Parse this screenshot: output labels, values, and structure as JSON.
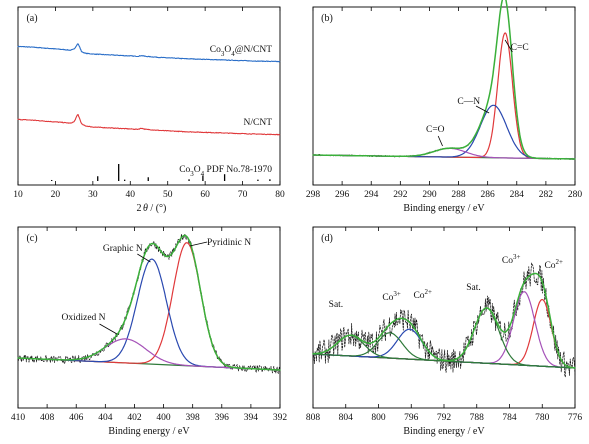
{
  "chart_data": [
    {
      "panel": "(a)",
      "type": "line",
      "xlabel": "2θ / (°)",
      "xlim": [
        10,
        80
      ],
      "xticks": [
        10,
        20,
        30,
        40,
        50,
        60,
        70,
        80
      ],
      "ylabel": "",
      "series": [
        {
          "name": "Co3O4@N/CNT",
          "color": "#2a6ec8",
          "x": [
            10,
            14,
            18,
            22,
            24,
            25,
            25.6,
            26,
            26.4,
            27,
            28,
            30,
            34,
            38,
            42,
            43,
            44,
            48,
            54,
            60,
            66,
            72,
            80
          ],
          "y": [
            62,
            60,
            57,
            54,
            52,
            55,
            64,
            70,
            62,
            48,
            44,
            42,
            40,
            38,
            36,
            38,
            36,
            33,
            30,
            28,
            26,
            24,
            22
          ]
        },
        {
          "name": "N/CNT",
          "color": "#e0393b",
          "x": [
            10,
            14,
            18,
            22,
            24,
            25,
            25.6,
            26,
            26.4,
            27,
            28,
            30,
            34,
            38,
            42,
            43,
            44,
            48,
            54,
            60,
            66,
            72,
            80
          ],
          "y": [
            62,
            60,
            57,
            54,
            52,
            56,
            68,
            76,
            66,
            50,
            45,
            42,
            40,
            38,
            36,
            39,
            36,
            33,
            30,
            28,
            26,
            24,
            22
          ]
        },
        {
          "name": "Co3O4 PDF No.78-1970",
          "type": "stick",
          "color": "#000000",
          "x": [
            19,
            31.3,
            36.9,
            38.5,
            44.8,
            55.7,
            59.4,
            65.2,
            74.1,
            77.3
          ],
          "y": [
            6,
            28,
            100,
            8,
            22,
            10,
            32,
            40,
            8,
            10
          ]
        }
      ]
    },
    {
      "panel": "(b)",
      "type": "line",
      "xlabel": "Binding energy / eV",
      "xlim": [
        298,
        280
      ],
      "xticks": [
        298,
        296,
        294,
        292,
        290,
        288,
        286,
        284,
        282,
        280
      ],
      "ylabel": "",
      "annotations": [
        "C=C",
        "C—N",
        "C=O"
      ],
      "series": [
        {
          "name": "C=C",
          "color": "#e0393b",
          "center": 284.8,
          "amp": 100,
          "width": 0.5
        },
        {
          "name": "C—N",
          "color": "#2a49b0",
          "center": 285.6,
          "amp": 42,
          "width": 0.9
        },
        {
          "name": "C=O",
          "color": "#a552b8",
          "center": 288.6,
          "amp": 7,
          "width": 1.1
        },
        {
          "name": "background",
          "color": "#2f7a3a",
          "type": "baseline"
        },
        {
          "name": "envelope",
          "color": "#3ab03a"
        }
      ]
    },
    {
      "panel": "(c)",
      "type": "line",
      "xlabel": "Binding energy / eV",
      "xlim": [
        410,
        392
      ],
      "xticks": [
        410,
        408,
        406,
        404,
        402,
        400,
        398,
        396,
        394,
        392
      ],
      "ylabel": "",
      "annotations": [
        "Graphic N",
        "Pyridinic N",
        "Oxidized N"
      ],
      "series": [
        {
          "name": "Pyridinic N",
          "color": "#e0393b",
          "center": 398.4,
          "amp": 82,
          "width": 0.95
        },
        {
          "name": "Graphic N",
          "color": "#2a49b0",
          "center": 400.8,
          "amp": 70,
          "width": 1.0
        },
        {
          "name": "Oxidized N",
          "color": "#a552b8",
          "center": 402.6,
          "amp": 16,
          "width": 1.4
        },
        {
          "name": "background",
          "color": "#2f7a3a",
          "type": "baseline"
        },
        {
          "name": "envelope",
          "color": "#3ab03a"
        }
      ]
    },
    {
      "panel": "(d)",
      "type": "line",
      "xlabel": "Binding energy / eV",
      "xlim": [
        808,
        776
      ],
      "xticks": [
        808,
        804,
        800,
        796,
        792,
        788,
        784,
        780,
        776
      ],
      "ylabel": "",
      "annotations": [
        "Sat.",
        "Co3+",
        "Co2+",
        "Sat.",
        "Co3+",
        "Co2+"
      ],
      "series": [
        {
          "name": "Co2+",
          "color": "#e0393b",
          "center": 780.0,
          "amp": 58,
          "width": 1.1
        },
        {
          "name": "Co3+",
          "color": "#a552b8",
          "center": 782.2,
          "amp": 64,
          "width": 1.3
        },
        {
          "name": "Sat.",
          "color": "#2f7a3a",
          "center": 786.8,
          "amp": 48,
          "width": 1.5
        },
        {
          "name": "Co2+",
          "color": "#2a49b0",
          "center": 796.2,
          "amp": 26,
          "width": 1.5
        },
        {
          "name": "Co3+",
          "color": "#2f7a3a",
          "center": 798.6,
          "amp": 22,
          "width": 1.5
        },
        {
          "name": "Sat.",
          "color": "#2f7a3a",
          "center": 803.4,
          "amp": 18,
          "width": 1.6
        },
        {
          "name": "background",
          "color": "#7030a0",
          "type": "baseline"
        },
        {
          "name": "envelope",
          "color": "#3ab03a"
        }
      ]
    }
  ]
}
